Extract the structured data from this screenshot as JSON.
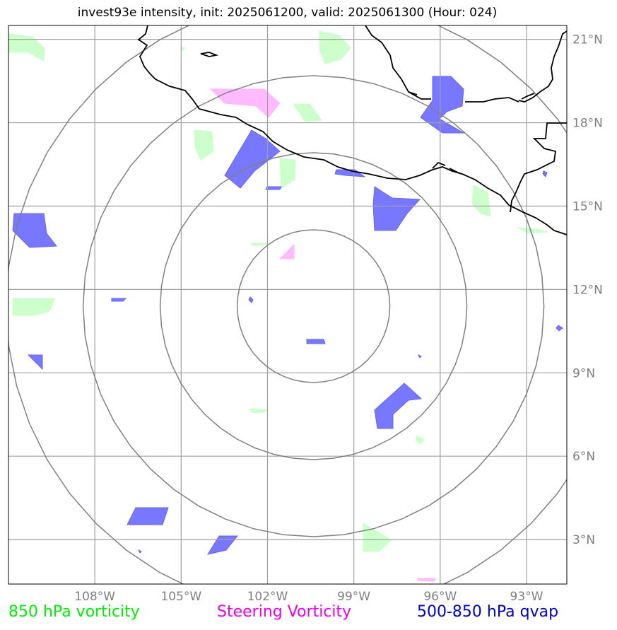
{
  "title": "invest93e intensity, init: 2025061200, valid: 2025061300 (Hour: 024)",
  "map": {
    "lon_range": [
      -111,
      -91.6
    ],
    "lat_range": [
      1.4,
      21.5
    ],
    "lon_ticks": [
      {
        "value": -108,
        "label": "108°W"
      },
      {
        "value": -105,
        "label": "105°W"
      },
      {
        "value": -102,
        "label": "102°W"
      },
      {
        "value": -99,
        "label": "99°W"
      },
      {
        "value": -96,
        "label": "96°W"
      },
      {
        "value": -93,
        "label": "93°W"
      }
    ],
    "lat_ticks": [
      {
        "value": 3,
        "label": "3°N"
      },
      {
        "value": 6,
        "label": "6°N"
      },
      {
        "value": 9,
        "label": "9°N"
      },
      {
        "value": 12,
        "label": "12°N"
      },
      {
        "value": 15,
        "label": "15°N"
      },
      {
        "value": 18,
        "label": "18°N"
      },
      {
        "value": 21,
        "label": "21°N"
      }
    ],
    "gridlines": true,
    "range_rings_center": {
      "lon": -100.4,
      "lat": 11.4
    },
    "colors": {
      "vort850": "#ccffcc",
      "steering": "#ff99ff",
      "qvap": "#6666ff",
      "coast": "#000000",
      "grid": "#a0a0a0",
      "rings": "#808080"
    }
  },
  "legend": {
    "vort850": {
      "label": "850 hPa vorticity",
      "color": "#00ee00"
    },
    "steering": {
      "label": "Steering Vorticity",
      "color": "#ee00ee"
    },
    "qvap": {
      "label": "500-850 hPa qvap",
      "color": "#0000cc"
    }
  }
}
